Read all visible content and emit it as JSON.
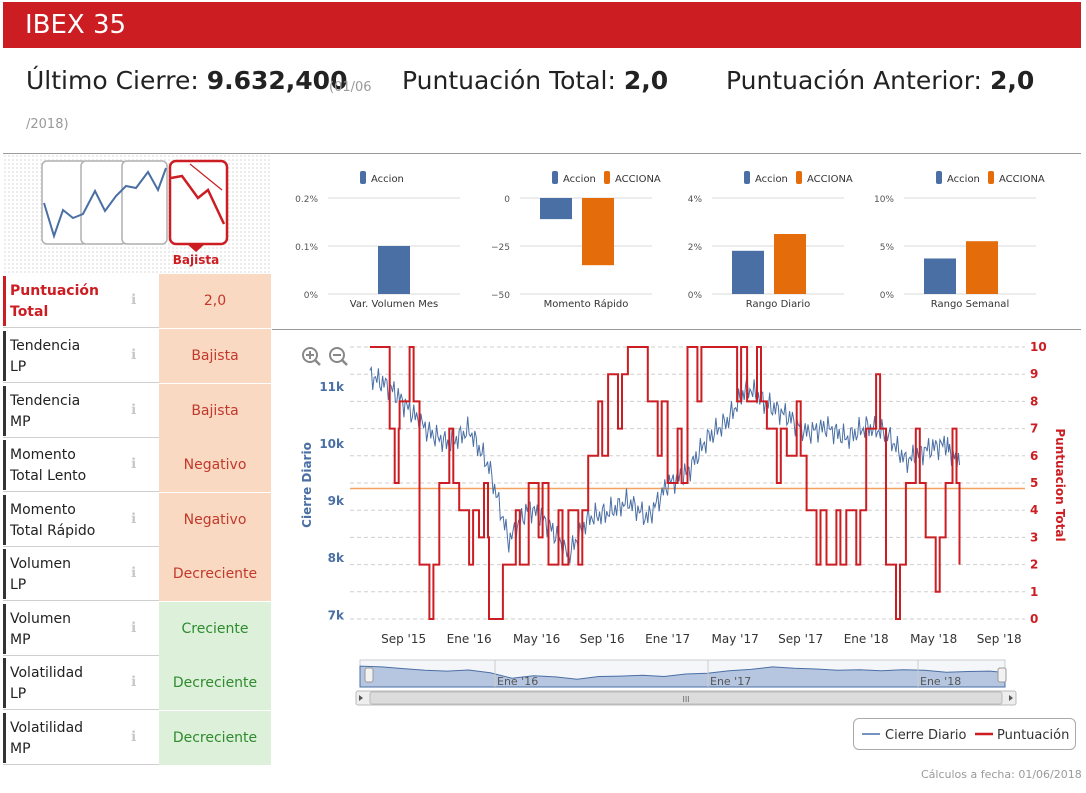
{
  "header": {
    "title": "IBEX 35"
  },
  "summary": {
    "close_label": "Último Cierre:",
    "close_value": "9.632,400",
    "date_part1": "(01/06",
    "date_part2": "/2018)",
    "total_label": "Puntuación Total:",
    "total_value": "2,0",
    "prev_label": "Puntuación Anterior:",
    "prev_value": "2,0"
  },
  "trend_icon": {
    "label": "Bajista",
    "icon": "bearish-trend-icon"
  },
  "rows": [
    {
      "label_a": "Puntuación",
      "label_b": "Total",
      "value": "2,0",
      "state": "neg"
    },
    {
      "label_a": "Tendencia",
      "label_b": "LP",
      "value": "Bajista",
      "state": "neg"
    },
    {
      "label_a": "Tendencia",
      "label_b": "MP",
      "value": "Bajista",
      "state": "neg"
    },
    {
      "label_a": "Momento",
      "label_b": "Total Lento",
      "value": "Negativo",
      "state": "neg"
    },
    {
      "label_a": "Momento",
      "label_b": "Total Rápido",
      "value": "Negativo",
      "state": "neg"
    },
    {
      "label_a": "Volumen",
      "label_b": "LP",
      "value": "Decreciente",
      "state": "neg"
    },
    {
      "label_a": "Volumen",
      "label_b": "MP",
      "value": "Creciente",
      "state": "pos"
    },
    {
      "label_a": "Volatilidad",
      "label_b": "LP",
      "value": "Decreciente",
      "state": "pos"
    },
    {
      "label_a": "Volatilidad",
      "label_b": "MP",
      "value": "Decreciente",
      "state": "pos"
    }
  ],
  "info_glyph": "ℹ",
  "colors": {
    "red": "#cc1d22",
    "blue": "#4a6fa5",
    "orange": "#e46c0a",
    "hline": "#f4a460"
  },
  "chart_data": [
    {
      "type": "bar",
      "title": "Var. Volumen Mes",
      "legend": [
        "Accion"
      ],
      "categories": [
        "Accion"
      ],
      "values": [
        0.1
      ],
      "ylim": [
        0,
        0.2
      ],
      "yticks": [
        "0%",
        "0.1%",
        "0.2%"
      ],
      "xlabel": "Var. Volumen Mes"
    },
    {
      "type": "bar",
      "title": "Momento Rápido",
      "legend": [
        "Accion",
        "ACCIONA"
      ],
      "categories": [
        "Accion",
        "ACCIONA"
      ],
      "values": [
        -11,
        -35
      ],
      "ylim": [
        -50,
        0
      ],
      "yticks": [
        "−50",
        "−25",
        "0"
      ],
      "xlabel": "Momento Rápido"
    },
    {
      "type": "bar",
      "title": "Rango Diario",
      "legend": [
        "Accion",
        "ACCIONA"
      ],
      "categories": [
        "Accion",
        "ACCIONA"
      ],
      "values": [
        1.8,
        2.5
      ],
      "ylim": [
        0,
        4
      ],
      "yticks": [
        "0%",
        "2%",
        "4%"
      ],
      "xlabel": "Rango Diario"
    },
    {
      "type": "bar",
      "title": "Rango Semanal",
      "legend": [
        "Accion",
        "ACCIONA"
      ],
      "categories": [
        "Accion",
        "ACCIONA"
      ],
      "values": [
        3.7,
        5.5
      ],
      "ylim": [
        0,
        10
      ],
      "yticks": [
        "0%",
        "5%",
        "10%"
      ],
      "xlabel": "Rango Semanal"
    },
    {
      "type": "line",
      "title": "",
      "x_ticks": [
        "Sep '15",
        "Ene '16",
        "May '16",
        "Sep '16",
        "Ene '17",
        "May '17",
        "Sep '17",
        "Ene '18",
        "May '18",
        "Sep '18"
      ],
      "ylabel": "Cierre Diario",
      "ylabel_right": "Puntuacion Total",
      "yticks_left": [
        "7k",
        "8k",
        "9k",
        "10k",
        "11k"
      ],
      "yticks_right": [
        "0",
        "1",
        "2",
        "3",
        "4",
        "5",
        "6",
        "7",
        "8",
        "9",
        "10"
      ],
      "ylim_left": [
        6900,
        11700
      ],
      "ylim_right": [
        0,
        10
      ],
      "reference_line_score": 4.8,
      "series": [
        {
          "name": "Cierre Diario",
          "x": [
            2015.45,
            2015.55,
            2015.65,
            2015.75,
            2015.85,
            2015.95,
            2016.05,
            2016.15,
            2016.25,
            2016.35,
            2016.45,
            2016.55,
            2016.65,
            2016.75,
            2016.85,
            2016.95,
            2017.05,
            2017.15,
            2017.25,
            2017.35,
            2017.45,
            2017.55,
            2017.65,
            2017.75,
            2017.85,
            2017.95,
            2018.05,
            2018.15,
            2018.25,
            2018.35,
            2018.42
          ],
          "values": [
            11200,
            11000,
            10600,
            10200,
            10000,
            10250,
            9600,
            8300,
            8900,
            8600,
            8050,
            8700,
            8800,
            9000,
            8700,
            9300,
            9500,
            10100,
            10400,
            11000,
            10700,
            10500,
            10200,
            10300,
            10100,
            10300,
            10200,
            9700,
            9900,
            10000,
            9632
          ]
        },
        {
          "name": "Puntuación",
          "x": [
            2015.45,
            2015.55,
            2015.6,
            2015.7,
            2015.8,
            2015.9,
            2016.0,
            2016.05,
            2016.12,
            2016.25,
            2016.35,
            2016.45,
            2016.55,
            2016.65,
            2016.75,
            2016.85,
            2016.95,
            2017.05,
            2017.15,
            2017.25,
            2017.35,
            2017.45,
            2017.55,
            2017.65,
            2017.75,
            2017.85,
            2017.95,
            2018.05,
            2018.15,
            2018.25,
            2018.35,
            2018.42
          ],
          "values": [
            10,
            7,
            8,
            2,
            5,
            4,
            3,
            0,
            2,
            5,
            2,
            4,
            6,
            9,
            10,
            8,
            5,
            10,
            10,
            10,
            8,
            7,
            6,
            4,
            2,
            4,
            7,
            2,
            5,
            3,
            5,
            2
          ]
        }
      ]
    }
  ],
  "chart_x_labels": [
    "Sep '15",
    "Ene '16",
    "May '16",
    "Sep '16",
    "Ene '17",
    "May '17",
    "Sep '17",
    "Ene '18",
    "May '18",
    "Sep '18"
  ],
  "navigator": {
    "labels": [
      "Ene '16",
      "Ene '17",
      "Ene '18"
    ],
    "scroll_glyph": "III"
  },
  "legend": {
    "series1": "Cierre Diario",
    "series2": "Puntuación"
  },
  "zoom": {
    "in": "zoom-in-icon",
    "out": "zoom-out-icon"
  },
  "footer": {
    "text": "Cálculos a fecha: 01/06/2018"
  }
}
